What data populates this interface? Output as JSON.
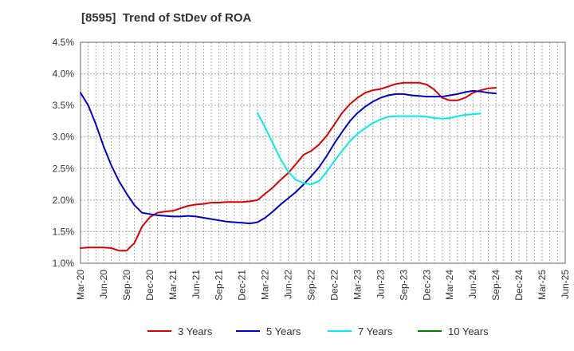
{
  "chart_data": {
    "type": "line",
    "title": "[8595]  Trend of StDev of ROA",
    "x_ticks": [
      "Mar-20",
      "Jun-20",
      "Sep-20",
      "Dec-20",
      "Mar-21",
      "Jun-21",
      "Sep-21",
      "Dec-21",
      "Mar-22",
      "Jun-22",
      "Sep-22",
      "Dec-22",
      "Mar-23",
      "Jun-23",
      "Sep-23",
      "Dec-23",
      "Mar-24",
      "Jun-24",
      "Sep-24",
      "Dec-24",
      "Mar-25",
      "Jun-25"
    ],
    "y_ticks": [
      "1.0%",
      "1.5%",
      "2.0%",
      "2.5%",
      "3.0%",
      "3.5%",
      "4.0%",
      "4.5%"
    ],
    "ylim": [
      1.0,
      4.5
    ],
    "y_unit": "%",
    "grid": true,
    "legend_position": "bottom",
    "series": [
      {
        "name": "3 Years",
        "color": "#dd0000",
        "start_index": 0,
        "values": [
          1.24,
          1.25,
          1.25,
          1.25,
          1.24,
          1.2,
          1.2,
          1.32,
          1.58,
          1.73,
          1.8,
          1.82,
          1.83,
          1.87,
          1.91,
          1.93,
          1.94,
          1.96,
          1.96,
          1.97,
          1.97,
          1.97,
          1.98,
          2.0,
          2.1,
          2.2,
          2.32,
          2.43,
          2.57,
          2.72,
          2.78,
          2.88,
          3.02,
          3.2,
          3.38,
          3.52,
          3.62,
          3.7,
          3.74,
          3.76,
          3.8,
          3.84,
          3.86,
          3.86,
          3.86,
          3.83,
          3.75,
          3.62,
          3.58,
          3.58,
          3.62,
          3.7,
          3.74,
          3.77,
          3.78
        ]
      },
      {
        "name": "5 Years",
        "color": "#0000cc",
        "start_index": 0,
        "values": [
          3.7,
          3.5,
          3.2,
          2.85,
          2.55,
          2.3,
          2.1,
          1.92,
          1.8,
          1.78,
          1.76,
          1.75,
          1.74,
          1.74,
          1.75,
          1.74,
          1.72,
          1.7,
          1.68,
          1.66,
          1.65,
          1.64,
          1.63,
          1.65,
          1.72,
          1.82,
          1.93,
          2.03,
          2.13,
          2.25,
          2.38,
          2.52,
          2.7,
          2.9,
          3.08,
          3.25,
          3.38,
          3.48,
          3.56,
          3.62,
          3.66,
          3.68,
          3.68,
          3.66,
          3.65,
          3.64,
          3.64,
          3.64,
          3.66,
          3.68,
          3.71,
          3.73,
          3.72,
          3.7,
          3.69
        ]
      },
      {
        "name": "7 Years",
        "color": "#00eeee",
        "start_index": 23,
        "values": [
          3.38,
          3.15,
          2.9,
          2.65,
          2.45,
          2.32,
          2.27,
          2.25,
          2.3,
          2.45,
          2.62,
          2.78,
          2.93,
          3.05,
          3.14,
          3.22,
          3.28,
          3.32,
          3.33,
          3.33,
          3.33,
          3.33,
          3.32,
          3.3,
          3.29,
          3.3,
          3.33,
          3.35,
          3.36,
          3.37
        ]
      },
      {
        "name": "10 Years",
        "color": "#008000",
        "start_index": 0,
        "values": []
      }
    ]
  }
}
